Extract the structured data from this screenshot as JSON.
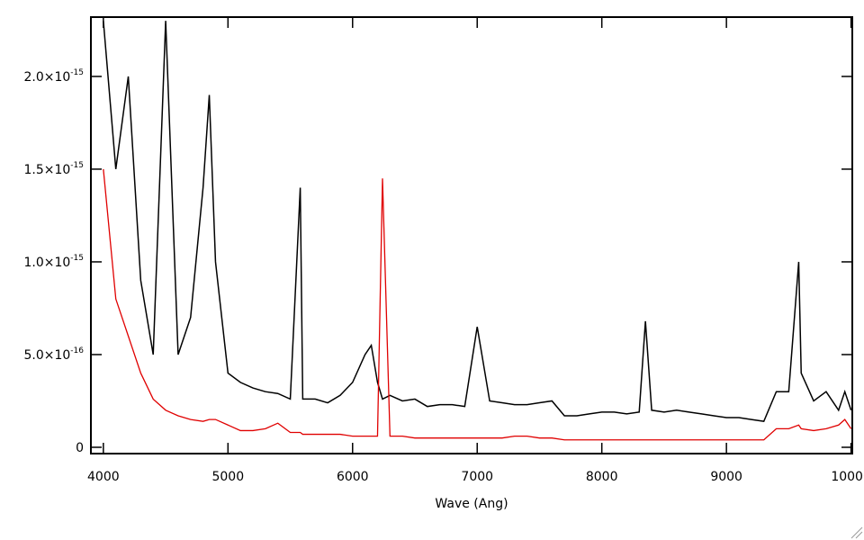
{
  "chart_data": {
    "type": "line",
    "xlabel": "Wave (Ang)",
    "x": [
      4000,
      4100,
      4200,
      4300,
      4400,
      4500,
      4600,
      4700,
      4800,
      4850,
      4900,
      5000,
      5100,
      5200,
      5300,
      5400,
      5500,
      5580,
      5600,
      5700,
      5800,
      5900,
      6000,
      6100,
      6150,
      6200,
      6240,
      6300,
      6400,
      6500,
      6600,
      6700,
      6800,
      6900,
      7000,
      7100,
      7200,
      7300,
      7400,
      7500,
      7600,
      7700,
      7800,
      7900,
      8000,
      8100,
      8200,
      8300,
      8350,
      8400,
      8500,
      8600,
      8700,
      8800,
      8900,
      9000,
      9100,
      9200,
      9300,
      9400,
      9500,
      9580,
      9600,
      9700,
      9800,
      9900,
      9950,
      10000
    ],
    "series": [
      {
        "color": "#000000",
        "values": [
          2.3e-15,
          1.5e-15,
          2e-15,
          9e-16,
          5e-16,
          2.3e-15,
          5e-16,
          7e-16,
          1.4e-15,
          1.9e-15,
          1e-15,
          4e-16,
          3.5e-16,
          3.2e-16,
          3e-16,
          2.9e-16,
          2.6e-16,
          1.4e-15,
          2.6e-16,
          2.6e-16,
          2.4e-16,
          2.8e-16,
          3.5e-16,
          5e-16,
          5.5e-16,
          3.5e-16,
          2.6e-16,
          2.8e-16,
          2.5e-16,
          2.6e-16,
          2.2e-16,
          2.3e-16,
          2.3e-16,
          2.2e-16,
          6.5e-16,
          2.5e-16,
          2.4e-16,
          2.3e-16,
          2.3e-16,
          2.4e-16,
          2.5e-16,
          1.7e-16,
          1.7e-16,
          1.8e-16,
          1.9e-16,
          1.9e-16,
          1.8e-16,
          1.9e-16,
          6.8e-16,
          2e-16,
          1.9e-16,
          2e-16,
          1.9e-16,
          1.8e-16,
          1.7e-16,
          1.6e-16,
          1.6e-16,
          1.5e-16,
          1.4e-16,
          3e-16,
          3e-16,
          1e-15,
          4e-16,
          2.5e-16,
          3e-16,
          2e-16,
          3e-16,
          2e-16
        ]
      },
      {
        "color": "#e00000",
        "values": [
          1.5e-15,
          8e-16,
          6e-16,
          4e-16,
          2.6e-16,
          2e-16,
          1.7e-16,
          1.5e-16,
          1.4e-16,
          1.5e-16,
          1.5e-16,
          1.2e-16,
          9e-17,
          9e-17,
          1e-16,
          1.3e-16,
          8e-17,
          8e-17,
          7e-17,
          7e-17,
          7e-17,
          7e-17,
          6e-17,
          6e-17,
          6e-17,
          6e-17,
          1.45e-15,
          6e-17,
          6e-17,
          5e-17,
          5e-17,
          5e-17,
          5e-17,
          5e-17,
          5e-17,
          5e-17,
          5e-17,
          6e-17,
          6e-17,
          5e-17,
          5e-17,
          4e-17,
          4e-17,
          4e-17,
          4e-17,
          4e-17,
          4e-17,
          4e-17,
          4e-17,
          4e-17,
          4e-17,
          4e-17,
          4e-17,
          4e-17,
          4e-17,
          4e-17,
          4e-17,
          4e-17,
          4e-17,
          1e-16,
          1e-16,
          1.2e-16,
          1e-16,
          9e-17,
          1e-16,
          1.2e-16,
          1.5e-16,
          1e-16
        ]
      }
    ],
    "xlim": [
      3900,
      10010
    ],
    "xticks": [
      4000,
      5000,
      6000,
      7000,
      8000,
      9000,
      10000
    ],
    "ylim": [
      -3.4e-17,
      2.32e-15
    ],
    "yticks": [
      0,
      {
        "value": 5e-16,
        "label": "5.0×10",
        "exponent": "-16"
      },
      {
        "value": 1e-15,
        "label": "1.0×10",
        "exponent": "-15"
      },
      {
        "value": 1.5e-15,
        "label": "1.5×10",
        "exponent": "-15"
      },
      {
        "value": 2e-15,
        "label": "2.0×10",
        "exponent": "-15"
      }
    ]
  }
}
